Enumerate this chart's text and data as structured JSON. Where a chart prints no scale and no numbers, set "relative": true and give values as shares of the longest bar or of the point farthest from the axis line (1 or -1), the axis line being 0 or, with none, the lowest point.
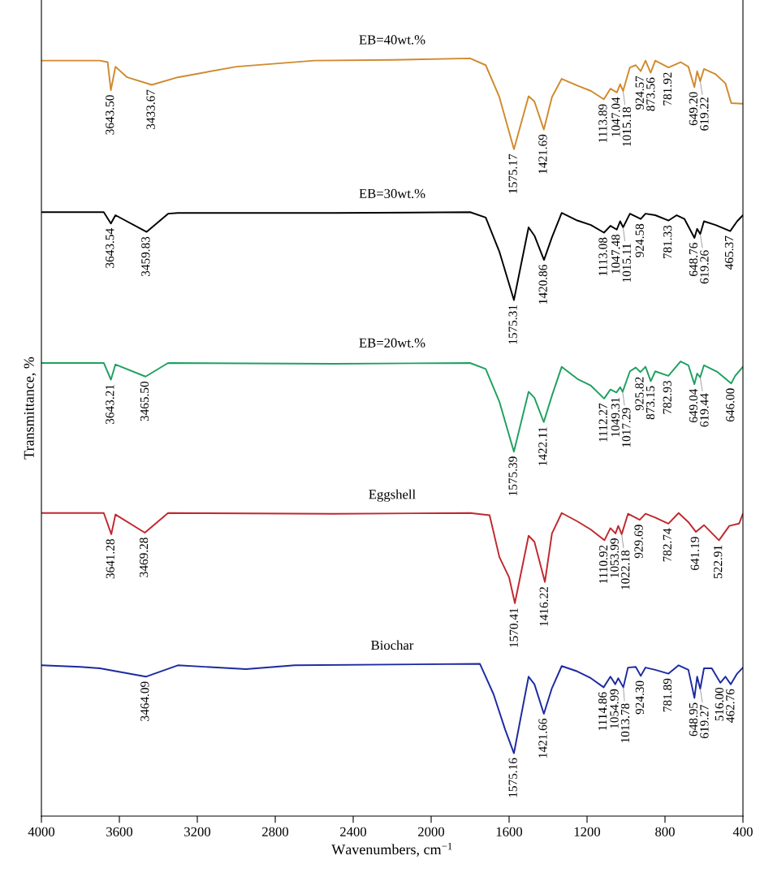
{
  "chart_data": {
    "type": "line",
    "relative": true,
    "xlabel": "Wavenumbers, cm$^{−1}$",
    "ylabel": "Transmittance, %",
    "xlim": [
      4000,
      400
    ],
    "xticks": [
      4000,
      3600,
      3200,
      2800,
      2400,
      2000,
      1600,
      1200,
      800,
      400
    ],
    "series": [
      {
        "name": "EB=40wt.%",
        "color": "#d08a2e",
        "x": [
          4000,
          3700,
          3660,
          3643.5,
          3620,
          3560,
          3433.67,
          3300,
          3000,
          2600,
          2200,
          1800,
          1720,
          1650,
          1575.17,
          1500,
          1470,
          1421.69,
          1380,
          1330,
          1250,
          1180,
          1113.89,
          1080,
          1047.04,
          1030,
          1015.18,
          980,
          950,
          924.57,
          900,
          873.56,
          850,
          781.92,
          720,
          680,
          649.2,
          635,
          619.22,
          600,
          540,
          490,
          460,
          400
        ],
        "values": [
          0.997,
          0.997,
          0.995,
          0.958,
          0.989,
          0.975,
          0.965,
          0.975,
          0.989,
          0.997,
          0.998,
          1.0,
          0.991,
          0.949,
          0.88,
          0.95,
          0.943,
          0.906,
          0.949,
          0.973,
          0.964,
          0.957,
          0.946,
          0.96,
          0.955,
          0.966,
          0.957,
          0.988,
          0.991,
          0.983,
          0.997,
          0.981,
          0.997,
          0.988,
          0.995,
          0.989,
          0.962,
          0.983,
          0.97,
          0.986,
          0.979,
          0.967,
          0.941,
          0.94
        ]
      },
      {
        "name": "EB=30wt.%",
        "color": "#000000",
        "x": [
          4000,
          3680,
          3643.54,
          3620,
          3459.83,
          3350,
          3300,
          2500,
          1800,
          1720,
          1650,
          1575.31,
          1500,
          1470,
          1420.86,
          1380,
          1330,
          1250,
          1180,
          1113.08,
          1080,
          1047.48,
          1030,
          1015.11,
          980,
          924.58,
          900,
          850,
          781.33,
          740,
          700,
          648.76,
          635,
          619.26,
          600,
          540,
          465.37,
          430,
          400
        ],
        "values": [
          0.797,
          0.797,
          0.782,
          0.793,
          0.771,
          0.795,
          0.796,
          0.796,
          0.797,
          0.79,
          0.745,
          0.681,
          0.777,
          0.766,
          0.734,
          0.764,
          0.796,
          0.786,
          0.78,
          0.77,
          0.779,
          0.774,
          0.785,
          0.777,
          0.795,
          0.788,
          0.795,
          0.793,
          0.786,
          0.793,
          0.788,
          0.763,
          0.775,
          0.768,
          0.785,
          0.78,
          0.772,
          0.785,
          0.793
        ]
      },
      {
        "name": "EB=20wt.%",
        "color": "#1fa060",
        "x": [
          4000,
          3680,
          3643.21,
          3620,
          3465.5,
          3350,
          2500,
          1800,
          1720,
          1650,
          1575.39,
          1500,
          1470,
          1422.11,
          1380,
          1330,
          1250,
          1180,
          1112.27,
          1080,
          1049.31,
          1030,
          1017.29,
          980,
          950,
          925.82,
          900,
          873.15,
          850,
          782.93,
          720,
          680,
          649.04,
          635,
          619.44,
          600,
          530,
          460,
          440,
          400
        ],
        "values": [
          0.598,
          0.598,
          0.576,
          0.596,
          0.58,
          0.598,
          0.597,
          0.598,
          0.59,
          0.547,
          0.481,
          0.56,
          0.552,
          0.52,
          0.555,
          0.593,
          0.577,
          0.568,
          0.551,
          0.563,
          0.559,
          0.566,
          0.56,
          0.587,
          0.592,
          0.586,
          0.593,
          0.574,
          0.587,
          0.581,
          0.6,
          0.595,
          0.57,
          0.584,
          0.579,
          0.595,
          0.586,
          0.571,
          0.581,
          0.593
        ]
      },
      {
        "name": "Eggshell",
        "color": "#c0282d",
        "x": [
          4000,
          3680,
          3641.28,
          3620,
          3469.28,
          3350,
          2500,
          1800,
          1700,
          1650,
          1600,
          1570.41,
          1500,
          1470,
          1416.22,
          1380,
          1330,
          1250,
          1180,
          1110.92,
          1080,
          1053.99,
          1040,
          1022.18,
          990,
          929.69,
          900,
          850,
          782.74,
          730,
          680,
          641.19,
          600,
          522.91,
          470,
          420,
          400
        ],
        "values": [
          0.4,
          0.4,
          0.372,
          0.398,
          0.374,
          0.4,
          0.399,
          0.4,
          0.397,
          0.342,
          0.315,
          0.281,
          0.37,
          0.362,
          0.309,
          0.373,
          0.4,
          0.389,
          0.378,
          0.364,
          0.38,
          0.373,
          0.383,
          0.372,
          0.399,
          0.391,
          0.399,
          0.394,
          0.386,
          0.4,
          0.388,
          0.375,
          0.384,
          0.364,
          0.383,
          0.386,
          0.399
        ]
      },
      {
        "name": "Biochar",
        "color": "#1c2aa0",
        "x": [
          4000,
          3800,
          3700,
          3464.09,
          3300,
          2950,
          2700,
          1750,
          1680,
          1620,
          1575.16,
          1500,
          1470,
          1421.66,
          1380,
          1330,
          1250,
          1180,
          1114.86,
          1080,
          1054.99,
          1040,
          1013.78,
          990,
          950,
          924.3,
          900,
          850,
          781.89,
          730,
          680,
          648.95,
          635,
          619.27,
          600,
          560,
          516,
          490,
          462.76,
          430,
          400
        ],
        "values": [
          0.199,
          0.197,
          0.195,
          0.184,
          0.199,
          0.194,
          0.199,
          0.201,
          0.161,
          0.114,
          0.083,
          0.184,
          0.174,
          0.135,
          0.169,
          0.198,
          0.191,
          0.182,
          0.17,
          0.184,
          0.174,
          0.182,
          0.17,
          0.196,
          0.197,
          0.185,
          0.196,
          0.193,
          0.188,
          0.199,
          0.193,
          0.156,
          0.184,
          0.168,
          0.195,
          0.195,
          0.176,
          0.184,
          0.174,
          0.188,
          0.196
        ]
      }
    ],
    "annotations": [
      {
        "text": "3643.50",
        "x": 3643.5,
        "y": 0.958
      },
      {
        "text": "3433.67",
        "x": 3433.67,
        "y": 0.965
      },
      {
        "text": "1575.17",
        "x": 1575.17,
        "y": 0.88
      },
      {
        "text": "1421.69",
        "x": 1421.69,
        "y": 0.906
      },
      {
        "text": "1113.89",
        "x": 1113.89,
        "y": 0.946
      },
      {
        "text": "1047.04",
        "x": 1047.04,
        "y": 0.955
      },
      {
        "text": "1015.18",
        "x": 1015.18,
        "y": 0.957
      },
      {
        "text": "924.57",
        "x": 924.57,
        "y": 0.983
      },
      {
        "text": "873.56",
        "x": 873.56,
        "y": 0.981
      },
      {
        "text": "781.92",
        "x": 781.92,
        "y": 0.988
      },
      {
        "text": "649.20",
        "x": 649.2,
        "y": 0.962
      },
      {
        "text": "619.22",
        "x": 619.22,
        "y": 0.97
      },
      {
        "text": "3643.54",
        "x": 3643.54,
        "y": 0.782
      },
      {
        "text": "3459.83",
        "x": 3459.83,
        "y": 0.771
      },
      {
        "text": "1575.31",
        "x": 1575.31,
        "y": 0.681
      },
      {
        "text": "1420.86",
        "x": 1420.86,
        "y": 0.734
      },
      {
        "text": "1113.08",
        "x": 1113.08,
        "y": 0.77
      },
      {
        "text": "1047.48",
        "x": 1047.48,
        "y": 0.774
      },
      {
        "text": "1015.11",
        "x": 1015.11,
        "y": 0.777
      },
      {
        "text": "924.58",
        "x": 924.58,
        "y": 0.788
      },
      {
        "text": "781.33",
        "x": 781.33,
        "y": 0.786
      },
      {
        "text": "648.76",
        "x": 648.76,
        "y": 0.763
      },
      {
        "text": "619.26",
        "x": 619.26,
        "y": 0.768
      },
      {
        "text": "465.37",
        "x": 465.37,
        "y": 0.772
      },
      {
        "text": "3643.21",
        "x": 3643.21,
        "y": 0.576
      },
      {
        "text": "3465.50",
        "x": 3465.5,
        "y": 0.58
      },
      {
        "text": "1575.39",
        "x": 1575.39,
        "y": 0.481
      },
      {
        "text": "1422.11",
        "x": 1422.11,
        "y": 0.52
      },
      {
        "text": "1112.27",
        "x": 1112.27,
        "y": 0.551
      },
      {
        "text": "1049.31",
        "x": 1049.31,
        "y": 0.559
      },
      {
        "text": "1017.29",
        "x": 1017.29,
        "y": 0.56
      },
      {
        "text": "925.82",
        "x": 925.82,
        "y": 0.586
      },
      {
        "text": "873.15",
        "x": 873.15,
        "y": 0.574
      },
      {
        "text": "782.93",
        "x": 782.93,
        "y": 0.581
      },
      {
        "text": "649.04",
        "x": 649.04,
        "y": 0.57
      },
      {
        "text": "619.44",
        "x": 619.44,
        "y": 0.579
      },
      {
        "text": "646.00",
        "x": 460,
        "y": 0.571
      },
      {
        "text": "3641.28",
        "x": 3641.28,
        "y": 0.372
      },
      {
        "text": "3469.28",
        "x": 3469.28,
        "y": 0.374
      },
      {
        "text": "1570.41",
        "x": 1570.41,
        "y": 0.281
      },
      {
        "text": "1416.22",
        "x": 1416.22,
        "y": 0.309
      },
      {
        "text": "1110.92",
        "x": 1110.92,
        "y": 0.364
      },
      {
        "text": "1053.99",
        "x": 1053.99,
        "y": 0.373
      },
      {
        "text": "1022.18",
        "x": 1022.18,
        "y": 0.372
      },
      {
        "text": "929.69",
        "x": 929.69,
        "y": 0.391
      },
      {
        "text": "782.74",
        "x": 782.74,
        "y": 0.386
      },
      {
        "text": "641.19",
        "x": 641.19,
        "y": 0.375
      },
      {
        "text": "522.91",
        "x": 522.91,
        "y": 0.364
      },
      {
        "text": "3464.09",
        "x": 3464.09,
        "y": 0.184
      },
      {
        "text": "1575.16",
        "x": 1575.16,
        "y": 0.083
      },
      {
        "text": "1421.66",
        "x": 1421.66,
        "y": 0.135
      },
      {
        "text": "1114.86",
        "x": 1114.86,
        "y": 0.17
      },
      {
        "text": "1054.99",
        "x": 1054.99,
        "y": 0.174
      },
      {
        "text": "1013.78",
        "x": 1013.78,
        "y": 0.17
      },
      {
        "text": "924.30",
        "x": 924.3,
        "y": 0.185
      },
      {
        "text": "781.89",
        "x": 781.89,
        "y": 0.188
      },
      {
        "text": "648.95",
        "x": 648.95,
        "y": 0.156
      },
      {
        "text": "619.27",
        "x": 619.27,
        "y": 0.168
      },
      {
        "text": "516.00",
        "x": 516,
        "y": 0.176
      },
      {
        "text": "462.76",
        "x": 462.76,
        "y": 0.174
      }
    ]
  }
}
